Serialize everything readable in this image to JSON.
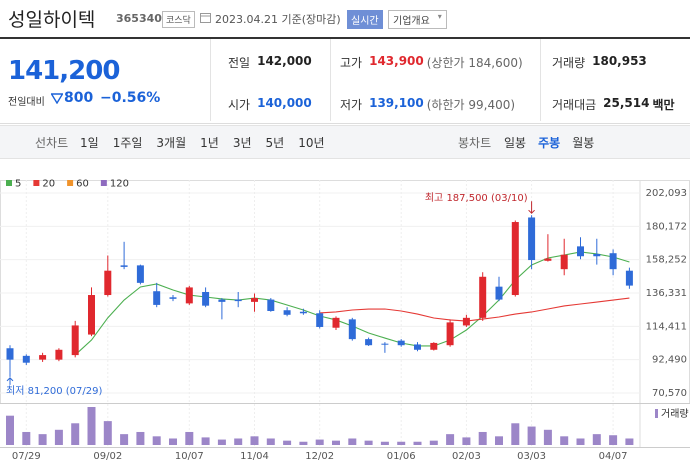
{
  "header": {
    "title": "성일하이텍",
    "code": "365340",
    "market": "코스닥",
    "date": "2023.04.21 기준(장마감)",
    "realtime": "실시간",
    "company": "기업개요"
  },
  "quote": {
    "price": "141,200",
    "change_label": "전일대비",
    "change": "800",
    "change_pct": "−0.56%",
    "items": [
      {
        "label": "전일",
        "value": "142,000"
      },
      {
        "label": "고가",
        "value": "143,900",
        "note": "(상한가 184,600)"
      },
      {
        "label": "거래량",
        "value": "180,953"
      },
      {
        "label": "시가",
        "value": "140,000"
      },
      {
        "label": "저가",
        "value": "139,100",
        "note": "(하한가 99,400)"
      },
      {
        "label": "거래대금",
        "value": "25,514",
        "unit": "백만"
      }
    ]
  },
  "toolbar": {
    "line_label": "선차트",
    "line_ranges": [
      "1일",
      "1주일",
      "3개월",
      "1년",
      "3년",
      "5년",
      "10년"
    ],
    "candle_label": "봉차트",
    "candle_ranges": [
      "일봉",
      "주봉",
      "월봉"
    ],
    "active": "주봉"
  },
  "chart_data": {
    "type": "candlestick",
    "categories": [
      null,
      "07/29",
      null,
      null,
      null,
      null,
      "09/02",
      null,
      null,
      null,
      null,
      "10/07",
      null,
      null,
      null,
      "11/04",
      null,
      null,
      null,
      "12/02",
      null,
      null,
      null,
      null,
      "01/06",
      null,
      null,
      null,
      "02/03",
      null,
      null,
      null,
      "03/03",
      null,
      null,
      null,
      null,
      "04/07",
      null
    ],
    "open": [
      100000,
      95000,
      92500,
      92500,
      95500,
      109000,
      135000,
      154500,
      154500,
      137500,
      133500,
      129500,
      137000,
      132000,
      132000,
      130500,
      132000,
      125000,
      124000,
      123000,
      113500,
      119000,
      106000,
      103000,
      105000,
      102500,
      99000,
      102000,
      115000,
      120000,
      140500,
      135000,
      186000,
      157500,
      152000,
      167000,
      162000,
      162500,
      151000
    ],
    "high": [
      102000,
      96000,
      97000,
      100000,
      118000,
      140000,
      161000,
      170000,
      155000,
      143000,
      135000,
      141000,
      140000,
      133000,
      137000,
      136000,
      133000,
      127000,
      126000,
      125000,
      121000,
      120000,
      107000,
      104000,
      106000,
      104000,
      104000,
      119000,
      122000,
      150000,
      147000,
      184000,
      187500,
      175000,
      172000,
      173000,
      172000,
      165000,
      153000
    ],
    "low": [
      81200,
      89000,
      91000,
      91500,
      94000,
      108000,
      134000,
      152000,
      142000,
      127000,
      131000,
      128500,
      127000,
      119000,
      127000,
      124000,
      124000,
      121000,
      122000,
      113000,
      112000,
      105000,
      101500,
      97000,
      101000,
      98000,
      98500,
      101000,
      114000,
      118000,
      131000,
      134000,
      152000,
      157000,
      148000,
      158500,
      155000,
      148000,
      139100
    ],
    "close": [
      92500,
      90500,
      95500,
      99000,
      115000,
      135000,
      151000,
      153500,
      143000,
      128500,
      132500,
      140000,
      128000,
      130500,
      131000,
      133000,
      124500,
      122000,
      123000,
      114000,
      120000,
      106000,
      102000,
      102500,
      102000,
      99000,
      103500,
      117000,
      120000,
      147000,
      132000,
      183000,
      158000,
      159000,
      161500,
      160500,
      160500,
      152000,
      141200
    ],
    "up_color": "#e0282e",
    "down_color": "#2f6bd8",
    "series": [
      {
        "name": "5",
        "color": "#4caf50",
        "values": [
          null,
          null,
          null,
          null,
          95600,
          105400,
          120000,
          131700,
          140300,
          142250,
          138300,
          135000,
          133700,
          132400,
          131700,
          133000,
          131700,
          128450,
          125150,
          121200,
          118600,
          114600,
          110000,
          106700,
          103450,
          101500,
          101500,
          105400,
          112000,
          121200,
          131700,
          144900,
          154750,
          159350,
          161300,
          163300,
          162000,
          160000,
          156700
        ]
      },
      {
        "name": "20",
        "color": "#e53935",
        "values": [
          null,
          null,
          null,
          null,
          null,
          null,
          null,
          null,
          null,
          null,
          null,
          null,
          null,
          null,
          null,
          null,
          null,
          null,
          null,
          123200,
          123850,
          125150,
          125800,
          125800,
          124500,
          122500,
          119900,
          118600,
          117900,
          119200,
          120550,
          122500,
          123850,
          125800,
          127800,
          129100,
          130400,
          131700,
          133000
        ]
      },
      {
        "name": "60",
        "color": "#f0932b",
        "values": [
          null,
          null,
          null,
          null,
          null,
          null,
          null,
          null,
          null,
          null,
          null,
          null,
          null,
          null,
          null,
          null,
          null,
          null,
          null,
          null,
          null,
          null,
          null,
          null,
          null,
          null,
          null,
          null,
          null,
          null,
          null,
          null,
          null,
          null,
          null,
          null,
          null,
          null,
          null
        ]
      },
      {
        "name": "120",
        "color": "#8e6bbf",
        "values": [
          null,
          null,
          null,
          null,
          null,
          null,
          null,
          null,
          null,
          null,
          null,
          null,
          null,
          null,
          null,
          null,
          null,
          null,
          null,
          null,
          null,
          null,
          null,
          null,
          null,
          null,
          null,
          null,
          null,
          null,
          null,
          null,
          null,
          null,
          null,
          null,
          null,
          null,
          null
        ]
      }
    ],
    "volume": {
      "name": "거래량",
      "color": "#9c86c8",
      "values": [
        540000,
        240000,
        200000,
        280000,
        400000,
        700000,
        440000,
        200000,
        240000,
        160000,
        120000,
        240000,
        140000,
        100000,
        120000,
        160000,
        120000,
        80000,
        60000,
        100000,
        80000,
        120000,
        80000,
        60000,
        60000,
        60000,
        80000,
        200000,
        140000,
        240000,
        160000,
        400000,
        340000,
        280000,
        160000,
        120000,
        200000,
        180000,
        120000
      ]
    },
    "annotations": [
      {
        "text": "최고 187,500 (03/10)"
      },
      {
        "text": "최저 81,200 (07/29)"
      }
    ],
    "ylim": [
      70570,
      202093
    ],
    "yticks": [
      {
        "value": 70570,
        "label": "70,570"
      },
      {
        "value": 92490,
        "label": "92,490"
      },
      {
        "value": 114411,
        "label": "114,411"
      },
      {
        "value": 136331,
        "label": "136,331"
      },
      {
        "value": 158252,
        "label": "158,252"
      },
      {
        "value": 180172,
        "label": "180,172"
      },
      {
        "value": 202093,
        "label": "202,093"
      }
    ],
    "grid": true
  }
}
